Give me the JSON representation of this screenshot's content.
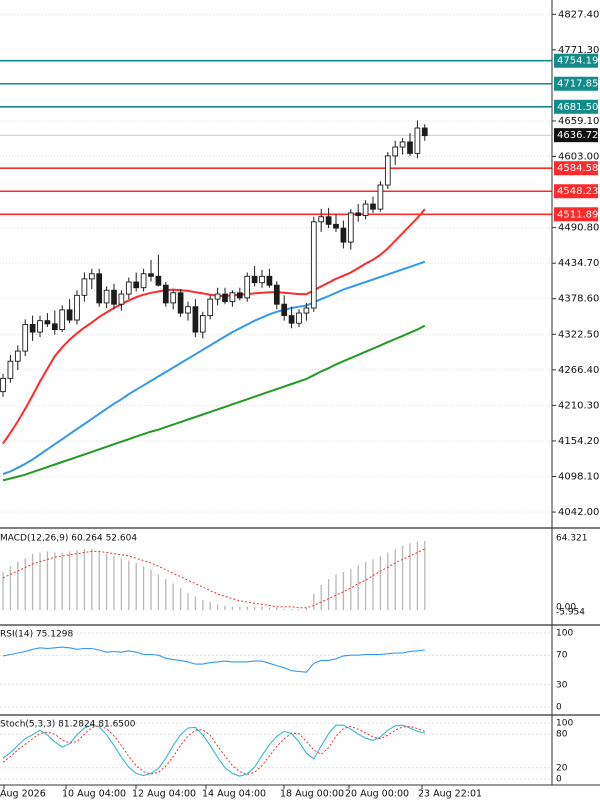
{
  "chart_data": {
    "type": "candlestick",
    "colors": {
      "bull_body": "#ffffff",
      "bear_body": "#1c1c1c",
      "wick": "#1c1c1c",
      "ma_red": "#ff2a2a",
      "ma_blue": "#3399ee",
      "ma_green": "#239a23",
      "resistance_line": "#138b8b",
      "support_line": "#ff2a2a",
      "macd_hist": "#b8b8b8",
      "signal": "#ee3333",
      "rsi": "#3399ee",
      "stoch_main": "#33bbcc",
      "stoch_signal": "#ee3333",
      "grid": "#cccccc",
      "text": "#111111"
    },
    "price_axis": {
      "ticks": [
        "4827.40",
        "4771.30",
        "4659.10",
        "4603.00",
        "4490.80",
        "4434.70",
        "4378.60",
        "4322.50",
        "4266.40",
        "4210.30",
        "4154.20",
        "4098.10",
        "4042.00"
      ],
      "range": [
        4020,
        4850
      ]
    },
    "current_price": "4636.72",
    "horizontal_levels": [
      {
        "value": 4754.19,
        "label": "4754.19",
        "kind": "resistance"
      },
      {
        "value": 4717.85,
        "label": "4717.85",
        "kind": "resistance"
      },
      {
        "value": 4681.5,
        "label": "4681.50",
        "kind": "resistance"
      },
      {
        "value": 4584.58,
        "label": "4584.58",
        "kind": "support"
      },
      {
        "value": 4548.23,
        "label": "4548.23",
        "kind": "support"
      },
      {
        "value": 4511.89,
        "label": "4511.89",
        "kind": "support"
      }
    ],
    "x_labels": [
      "Aug 2026",
      "10 Aug 04:00",
      "12 Aug 04:00",
      "14 Aug 04:00",
      "18 Aug 00:00",
      "20 Aug 00:00",
      "23 Aug 22:01"
    ],
    "candles": [
      {
        "o": 4232,
        "h": 4260,
        "l": 4224,
        "c": 4253
      },
      {
        "o": 4253,
        "h": 4290,
        "l": 4246,
        "c": 4280
      },
      {
        "o": 4280,
        "h": 4305,
        "l": 4266,
        "c": 4296
      },
      {
        "o": 4296,
        "h": 4346,
        "l": 4288,
        "c": 4338
      },
      {
        "o": 4338,
        "h": 4352,
        "l": 4312,
        "c": 4326
      },
      {
        "o": 4326,
        "h": 4352,
        "l": 4318,
        "c": 4344
      },
      {
        "o": 4344,
        "h": 4356,
        "l": 4334,
        "c": 4339
      },
      {
        "o": 4339,
        "h": 4360,
        "l": 4322,
        "c": 4330
      },
      {
        "o": 4330,
        "h": 4368,
        "l": 4326,
        "c": 4361
      },
      {
        "o": 4361,
        "h": 4378,
        "l": 4340,
        "c": 4345
      },
      {
        "o": 4345,
        "h": 4392,
        "l": 4338,
        "c": 4384
      },
      {
        "o": 4384,
        "h": 4420,
        "l": 4374,
        "c": 4410
      },
      {
        "o": 4410,
        "h": 4426,
        "l": 4394,
        "c": 4418
      },
      {
        "o": 4418,
        "h": 4426,
        "l": 4366,
        "c": 4372
      },
      {
        "o": 4372,
        "h": 4398,
        "l": 4364,
        "c": 4392
      },
      {
        "o": 4392,
        "h": 4402,
        "l": 4362,
        "c": 4370
      },
      {
        "o": 4370,
        "h": 4392,
        "l": 4360,
        "c": 4386
      },
      {
        "o": 4386,
        "h": 4412,
        "l": 4378,
        "c": 4405
      },
      {
        "o": 4405,
        "h": 4420,
        "l": 4390,
        "c": 4396
      },
      {
        "o": 4396,
        "h": 4426,
        "l": 4390,
        "c": 4418
      },
      {
        "o": 4418,
        "h": 4440,
        "l": 4406,
        "c": 4414
      },
      {
        "o": 4414,
        "h": 4448,
        "l": 4398,
        "c": 4400
      },
      {
        "o": 4400,
        "h": 4405,
        "l": 4366,
        "c": 4372
      },
      {
        "o": 4372,
        "h": 4392,
        "l": 4362,
        "c": 4388
      },
      {
        "o": 4388,
        "h": 4394,
        "l": 4350,
        "c": 4356
      },
      {
        "o": 4356,
        "h": 4374,
        "l": 4344,
        "c": 4366
      },
      {
        "o": 4366,
        "h": 4378,
        "l": 4318,
        "c": 4326
      },
      {
        "o": 4326,
        "h": 4358,
        "l": 4316,
        "c": 4352
      },
      {
        "o": 4352,
        "h": 4384,
        "l": 4346,
        "c": 4378
      },
      {
        "o": 4378,
        "h": 4396,
        "l": 4368,
        "c": 4386
      },
      {
        "o": 4386,
        "h": 4396,
        "l": 4370,
        "c": 4374
      },
      {
        "o": 4374,
        "h": 4392,
        "l": 4366,
        "c": 4388
      },
      {
        "o": 4388,
        "h": 4396,
        "l": 4376,
        "c": 4380
      },
      {
        "o": 4380,
        "h": 4420,
        "l": 4374,
        "c": 4414
      },
      {
        "o": 4414,
        "h": 4430,
        "l": 4398,
        "c": 4404
      },
      {
        "o": 4404,
        "h": 4424,
        "l": 4396,
        "c": 4414
      },
      {
        "o": 4414,
        "h": 4426,
        "l": 4396,
        "c": 4400
      },
      {
        "o": 4400,
        "h": 4406,
        "l": 4362,
        "c": 4370
      },
      {
        "o": 4370,
        "h": 4384,
        "l": 4344,
        "c": 4352
      },
      {
        "o": 4352,
        "h": 4366,
        "l": 4332,
        "c": 4340
      },
      {
        "o": 4340,
        "h": 4362,
        "l": 4334,
        "c": 4356
      },
      {
        "o": 4356,
        "h": 4372,
        "l": 4344,
        "c": 4364
      },
      {
        "o": 4364,
        "h": 4508,
        "l": 4358,
        "c": 4500
      },
      {
        "o": 4500,
        "h": 4520,
        "l": 4484,
        "c": 4508
      },
      {
        "o": 4508,
        "h": 4522,
        "l": 4490,
        "c": 4496
      },
      {
        "o": 4496,
        "h": 4512,
        "l": 4484,
        "c": 4490
      },
      {
        "o": 4490,
        "h": 4502,
        "l": 4458,
        "c": 4468
      },
      {
        "o": 4468,
        "h": 4520,
        "l": 4456,
        "c": 4514
      },
      {
        "o": 4514,
        "h": 4528,
        "l": 4500,
        "c": 4510
      },
      {
        "o": 4510,
        "h": 4534,
        "l": 4504,
        "c": 4528
      },
      {
        "o": 4528,
        "h": 4540,
        "l": 4514,
        "c": 4520
      },
      {
        "o": 4520,
        "h": 4564,
        "l": 4516,
        "c": 4558
      },
      {
        "o": 4558,
        "h": 4610,
        "l": 4552,
        "c": 4604
      },
      {
        "o": 4604,
        "h": 4628,
        "l": 4590,
        "c": 4618
      },
      {
        "o": 4618,
        "h": 4632,
        "l": 4606,
        "c": 4626
      },
      {
        "o": 4626,
        "h": 4640,
        "l": 4604,
        "c": 4608
      },
      {
        "o": 4608,
        "h": 4660,
        "l": 4600,
        "c": 4648
      },
      {
        "o": 4648,
        "h": 4654,
        "l": 4628,
        "c": 4636
      }
    ],
    "moving_averages": [
      {
        "color_key": "ma_red",
        "values": [
          4150,
          4167,
          4185,
          4205,
          4226,
          4248,
          4268,
          4288,
          4302,
          4314,
          4324,
          4333,
          4341,
          4350,
          4357,
          4364,
          4370,
          4376,
          4381,
          4385,
          4388,
          4390,
          4392,
          4393,
          4392,
          4391,
          4389,
          4387,
          4385,
          4383,
          4383,
          4384,
          4385,
          4386,
          4387,
          4388,
          4389,
          4389,
          4388,
          4387,
          4386,
          4386,
          4392,
          4398,
          4404,
          4410,
          4415,
          4420,
          4427,
          4434,
          4440,
          4448,
          4458,
          4470,
          4482,
          4494,
          4506,
          4520
        ]
      },
      {
        "color_key": "ma_blue",
        "values": [
          4102,
          4106,
          4112,
          4118,
          4125,
          4133,
          4141,
          4149,
          4157,
          4165,
          4173,
          4181,
          4189,
          4197,
          4205,
          4213,
          4220,
          4228,
          4235,
          4242,
          4249,
          4256,
          4263,
          4270,
          4277,
          4284,
          4291,
          4298,
          4305,
          4312,
          4319,
          4326,
          4332,
          4338,
          4344,
          4349,
          4354,
          4358,
          4361,
          4364,
          4366,
          4368,
          4373,
          4378,
          4383,
          4388,
          4393,
          4397,
          4401,
          4405,
          4409,
          4413,
          4417,
          4421,
          4425,
          4429,
          4433,
          4437
        ]
      },
      {
        "color_key": "ma_green",
        "values": [
          4092,
          4095,
          4098,
          4101,
          4105,
          4109,
          4113,
          4117,
          4121,
          4125,
          4129,
          4133,
          4137,
          4141,
          4145,
          4149,
          4153,
          4157,
          4161,
          4165,
          4169,
          4172,
          4176,
          4180,
          4184,
          4188,
          4192,
          4196,
          4200,
          4204,
          4208,
          4212,
          4216,
          4220,
          4224,
          4228,
          4232,
          4236,
          4240,
          4244,
          4248,
          4252,
          4258,
          4264,
          4269,
          4275,
          4280,
          4285,
          4290,
          4295,
          4300,
          4305,
          4310,
          4315,
          4320,
          4325,
          4330,
          4336
        ]
      }
    ],
    "macd": {
      "label": "MACD(12,26,9) 60.264 52.604",
      "axis_top": "64.321",
      "axis_bottom": "0.00",
      "axis_bottom2": "-5.954",
      "range": [
        -5.954,
        64.321
      ],
      "hist": [
        33,
        38,
        42,
        45,
        49,
        50,
        51,
        50,
        50,
        51,
        52,
        53,
        53,
        51,
        49,
        47,
        45,
        43,
        41,
        38,
        35,
        31,
        27,
        23,
        19,
        15,
        12,
        9,
        7,
        5,
        4,
        3,
        3,
        3,
        3,
        3,
        2,
        2,
        1,
        1,
        1,
        2,
        14,
        22,
        27,
        31,
        33,
        36,
        39,
        42,
        44,
        47,
        50,
        53,
        56,
        58,
        59,
        60
      ],
      "signal": [
        28,
        31,
        34,
        37,
        40,
        42,
        44,
        46,
        47,
        48,
        49,
        50,
        51,
        51,
        50,
        49,
        48,
        47,
        45,
        43,
        41,
        38,
        35,
        32,
        29,
        26,
        23,
        20,
        17,
        14,
        12,
        10,
        8,
        7,
        6,
        5,
        4,
        3,
        3,
        3,
        2,
        2,
        4,
        7,
        10,
        13,
        16,
        19,
        23,
        26,
        30,
        34,
        37,
        41,
        44,
        47,
        50,
        53
      ]
    },
    "rsi": {
      "label": "RSI(14) 75.1298",
      "ticks": [
        "100",
        "70",
        "30",
        "0"
      ],
      "values": [
        69,
        71,
        73,
        75,
        78,
        80,
        79,
        80,
        81,
        80,
        78,
        79,
        79,
        77,
        74,
        75,
        74,
        76,
        74,
        71,
        71,
        70,
        66,
        64,
        63,
        61,
        58,
        58,
        60,
        61,
        62,
        61,
        61,
        61,
        62,
        62,
        59,
        56,
        53,
        49,
        48,
        47,
        59,
        63,
        63,
        65,
        69,
        70,
        70,
        71,
        71,
        71,
        72,
        73,
        73,
        75,
        76,
        77
      ]
    },
    "stoch": {
      "label": "Stoch(5,3,3) 81.2824 81.6500",
      "ticks": [
        "100",
        "80",
        "20",
        "0"
      ],
      "main": [
        37,
        47,
        60,
        72,
        79,
        87,
        79,
        66,
        57,
        63,
        79,
        91,
        96,
        93,
        79,
        60,
        39,
        21,
        10,
        6,
        10,
        19,
        37,
        60,
        79,
        91,
        92,
        79,
        60,
        39,
        20,
        10,
        5,
        9,
        21,
        42,
        61,
        76,
        85,
        81,
        66,
        46,
        36,
        59,
        81,
        96,
        96,
        89,
        80,
        73,
        69,
        75,
        87,
        95,
        96,
        91,
        85,
        82
      ],
      "signal": [
        30,
        40,
        52,
        62,
        72,
        81,
        84,
        80,
        70,
        64,
        67,
        80,
        92,
        95,
        90,
        77,
        60,
        40,
        24,
        13,
        9,
        12,
        23,
        40,
        60,
        77,
        87,
        88,
        78,
        59,
        41,
        24,
        13,
        8,
        12,
        24,
        41,
        58,
        72,
        82,
        81,
        67,
        52,
        44,
        56,
        76,
        90,
        94,
        89,
        82,
        75,
        72,
        78,
        87,
        93,
        94,
        90,
        85
      ]
    }
  }
}
